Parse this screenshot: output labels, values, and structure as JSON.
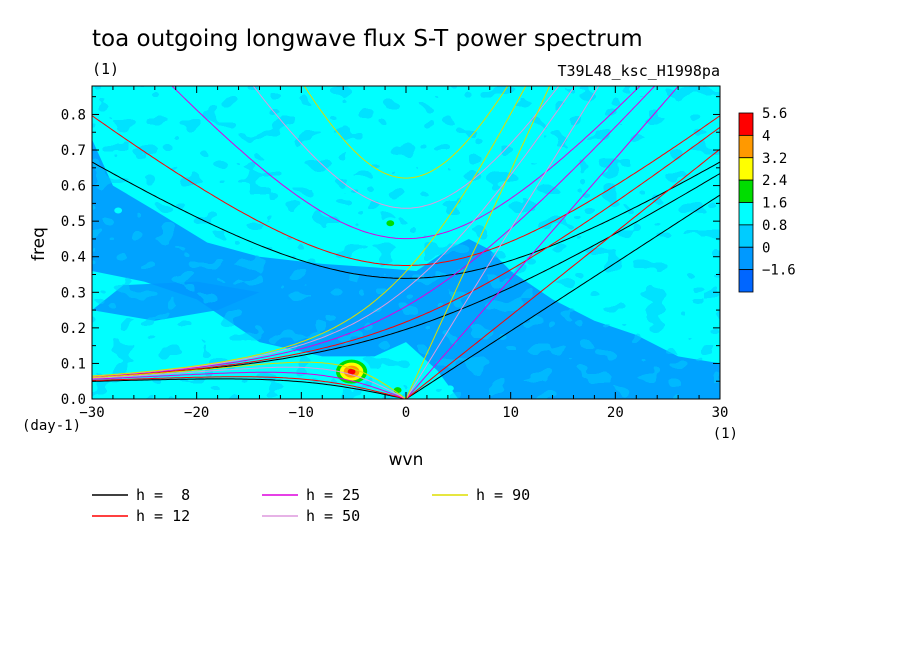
{
  "chart_data": {
    "type": "heatmap",
    "title": "toa outgoing longwave flux S-T power spectrum",
    "subtitle_left": "(1)",
    "subtitle_right": "T39L48_ksc_H1998pa",
    "xlabel": "wvn",
    "ylabel": "freq",
    "x_unit": "(1)",
    "y_unit": "(day-1)",
    "xlim": [
      -30,
      30
    ],
    "ylim": [
      0,
      0.88
    ],
    "xticks": [
      -30,
      -20,
      -10,
      0,
      10,
      20,
      30
    ],
    "yticks": [
      0.0,
      0.1,
      0.2,
      0.3,
      0.4,
      0.5,
      0.6,
      0.7,
      0.8
    ],
    "colorbar": {
      "levels": [
        "5.6",
        "4",
        "3.2",
        "2.4",
        "1.6",
        "0.8",
        "0",
        "-1.6"
      ],
      "colors": [
        "#ff0000",
        "#ff9900",
        "#ffff00",
        "#00dd00",
        "#00ffff",
        "#00ccff",
        "#0099ff",
        "#0066ff"
      ]
    },
    "background_color": "#00ffff",
    "low_region_color": "#0099ff",
    "hotspots": [
      {
        "x": -5.2,
        "y": 0.077,
        "level": "5.6"
      },
      {
        "x": -1.5,
        "y": 0.494,
        "level": "2.4"
      },
      {
        "x": -0.8,
        "y": 0.025,
        "level": "2.4"
      },
      {
        "x": 4.2,
        "y": 0.03,
        "level": "1.6"
      },
      {
        "x": 13.5,
        "y": 0.66,
        "level": "1.6"
      },
      {
        "x": -27.5,
        "y": 0.53,
        "level": "1.6"
      }
    ],
    "dispersion_curves": [
      {
        "name": "h =  8",
        "color": "#000000",
        "h": 8
      },
      {
        "name": "h = 12",
        "color": "#ff0000",
        "h": 12
      },
      {
        "name": "h = 25",
        "color": "#dd00dd",
        "h": 25
      },
      {
        "name": "h = 50",
        "color": "#dd99dd",
        "h": 50
      },
      {
        "name": "h = 90",
        "color": "#dddd00",
        "h": 90
      }
    ]
  }
}
